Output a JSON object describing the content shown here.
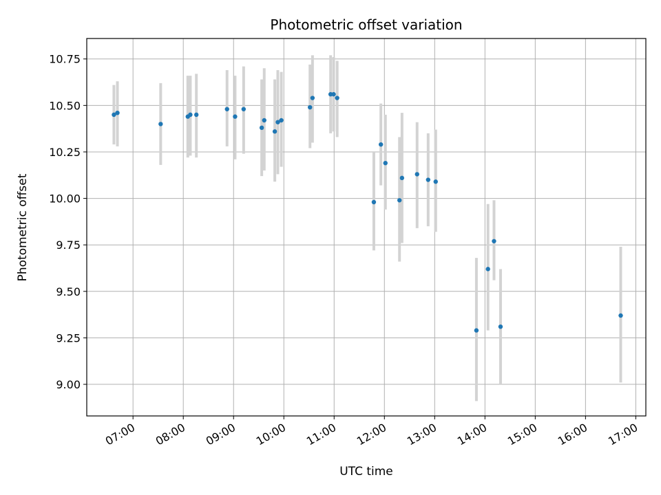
{
  "chart_data": {
    "type": "scatter",
    "title": "Photometric offset variation",
    "xlabel": "UTC time",
    "ylabel": "Photometric offset",
    "x_unit": "hours UTC",
    "xlim": [
      6.08,
      17.2
    ],
    "ylim": [
      8.83,
      10.86
    ],
    "grid": true,
    "x_ticks": [
      {
        "value": 7,
        "label": "07:00"
      },
      {
        "value": 8,
        "label": "08:00"
      },
      {
        "value": 9,
        "label": "09:00"
      },
      {
        "value": 10,
        "label": "10:00"
      },
      {
        "value": 11,
        "label": "11:00"
      },
      {
        "value": 12,
        "label": "12:00"
      },
      {
        "value": 13,
        "label": "13:00"
      },
      {
        "value": 14,
        "label": "14:00"
      },
      {
        "value": 15,
        "label": "15:00"
      },
      {
        "value": 16,
        "label": "16:00"
      },
      {
        "value": 17,
        "label": "17:00"
      }
    ],
    "y_ticks": [
      {
        "value": 9.0,
        "label": "9.00"
      },
      {
        "value": 9.25,
        "label": "9.25"
      },
      {
        "value": 9.5,
        "label": "9.50"
      },
      {
        "value": 9.75,
        "label": "9.75"
      },
      {
        "value": 10.0,
        "label": "10.00"
      },
      {
        "value": 10.25,
        "label": "10.25"
      },
      {
        "value": 10.5,
        "label": "10.50"
      },
      {
        "value": 10.75,
        "label": "10.75"
      }
    ],
    "marker_color": "#1f77b4",
    "errorbar_color": "#d3d3d3",
    "points": [
      {
        "x": 6.62,
        "y": 10.45,
        "lo": 10.29,
        "hi": 10.61
      },
      {
        "x": 6.69,
        "y": 10.46,
        "lo": 10.28,
        "hi": 10.63
      },
      {
        "x": 7.55,
        "y": 10.4,
        "lo": 10.18,
        "hi": 10.62
      },
      {
        "x": 8.09,
        "y": 10.44,
        "lo": 10.22,
        "hi": 10.66
      },
      {
        "x": 8.14,
        "y": 10.45,
        "lo": 10.23,
        "hi": 10.66
      },
      {
        "x": 8.26,
        "y": 10.45,
        "lo": 10.22,
        "hi": 10.67
      },
      {
        "x": 8.87,
        "y": 10.48,
        "lo": 10.28,
        "hi": 10.69
      },
      {
        "x": 9.03,
        "y": 10.44,
        "lo": 10.21,
        "hi": 10.66
      },
      {
        "x": 9.2,
        "y": 10.48,
        "lo": 10.24,
        "hi": 10.71
      },
      {
        "x": 9.56,
        "y": 10.38,
        "lo": 10.12,
        "hi": 10.64
      },
      {
        "x": 9.61,
        "y": 10.42,
        "lo": 10.15,
        "hi": 10.7
      },
      {
        "x": 9.82,
        "y": 10.36,
        "lo": 10.09,
        "hi": 10.64
      },
      {
        "x": 9.88,
        "y": 10.41,
        "lo": 10.13,
        "hi": 10.69
      },
      {
        "x": 9.95,
        "y": 10.42,
        "lo": 10.17,
        "hi": 10.68
      },
      {
        "x": 10.52,
        "y": 10.49,
        "lo": 10.27,
        "hi": 10.72
      },
      {
        "x": 10.57,
        "y": 10.54,
        "lo": 10.3,
        "hi": 10.77
      },
      {
        "x": 10.93,
        "y": 10.56,
        "lo": 10.35,
        "hi": 10.77
      },
      {
        "x": 10.99,
        "y": 10.56,
        "lo": 10.36,
        "hi": 10.76
      },
      {
        "x": 11.06,
        "y": 10.54,
        "lo": 10.33,
        "hi": 10.74
      },
      {
        "x": 11.79,
        "y": 9.98,
        "lo": 9.72,
        "hi": 10.25
      },
      {
        "x": 11.93,
        "y": 10.29,
        "lo": 10.07,
        "hi": 10.51
      },
      {
        "x": 12.02,
        "y": 10.19,
        "lo": 9.94,
        "hi": 10.45
      },
      {
        "x": 12.3,
        "y": 9.99,
        "lo": 9.66,
        "hi": 10.33
      },
      {
        "x": 12.35,
        "y": 10.11,
        "lo": 9.76,
        "hi": 10.46
      },
      {
        "x": 12.65,
        "y": 10.13,
        "lo": 9.84,
        "hi": 10.41
      },
      {
        "x": 12.87,
        "y": 10.1,
        "lo": 9.85,
        "hi": 10.35
      },
      {
        "x": 13.02,
        "y": 10.09,
        "lo": 9.82,
        "hi": 10.37
      },
      {
        "x": 13.83,
        "y": 9.29,
        "lo": 8.91,
        "hi": 9.68
      },
      {
        "x": 14.06,
        "y": 9.62,
        "lo": 9.29,
        "hi": 9.97
      },
      {
        "x": 14.18,
        "y": 9.77,
        "lo": 9.56,
        "hi": 9.99
      },
      {
        "x": 14.31,
        "y": 9.31,
        "lo": 9.0,
        "hi": 9.62
      },
      {
        "x": 16.7,
        "y": 9.37,
        "lo": 9.01,
        "hi": 9.74
      }
    ]
  }
}
